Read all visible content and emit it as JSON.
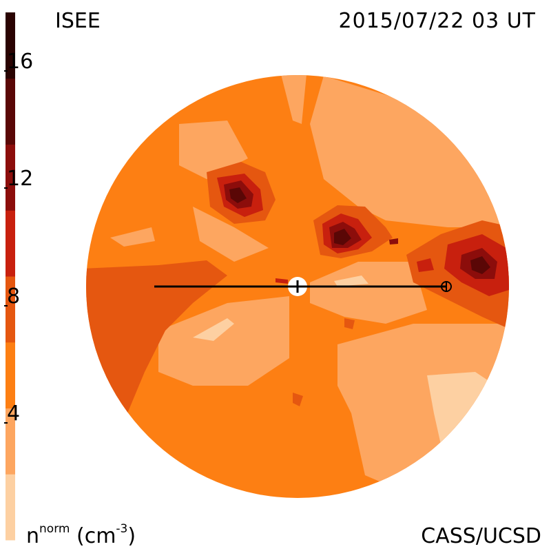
{
  "header": {
    "left_label": "ISEE",
    "timestamp": "2015/07/22 03 UT"
  },
  "footer": {
    "credit": "CASS/UCSD",
    "unit_base": "n",
    "unit_sup": "norm",
    "unit_rest": "(cm",
    "unit_exp": "-3",
    "unit_close": ")"
  },
  "colorbar": {
    "levels": [
      {
        "color": "#fdd0a2"
      },
      {
        "color": "#fda660"
      },
      {
        "color": "#fd7f13"
      },
      {
        "color": "#e55710"
      },
      {
        "color": "#c8200e"
      },
      {
        "color": "#8c0d0b"
      },
      {
        "color": "#5a0706"
      },
      {
        "color": "#2a0302"
      }
    ],
    "ticks": [
      {
        "label": "4",
        "value": 4
      },
      {
        "label": "8",
        "value": 8
      },
      {
        "label": "12",
        "value": 12
      },
      {
        "label": "16",
        "value": 16
      }
    ],
    "range": [
      0,
      18
    ]
  }
}
